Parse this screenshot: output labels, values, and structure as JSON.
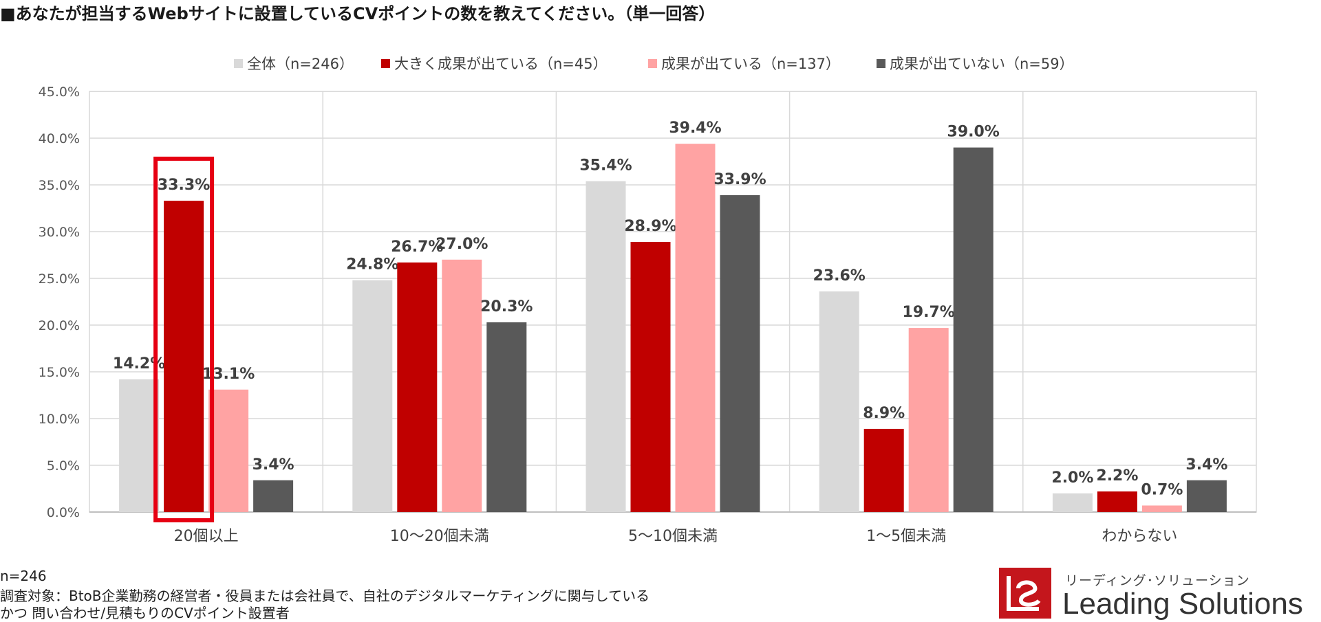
{
  "title": "■あなたが担当するWebサイトに設置しているCVポイントの数を教えてください。（単一回答）",
  "footnotes": {
    "n": "n=246",
    "line1": "調査対象：BtoB企業勤務の経営者・役員または会社員で、自社のデジタルマーケティングに関与している",
    "line2": "かつ 問い合わせ/見積もりのCVポイント設置者"
  },
  "logo": {
    "sub": "リーディング･ソリューション",
    "main": "Leading Solutions"
  },
  "chart_data": {
    "type": "bar",
    "categories": [
      "20個以上",
      "10～20個未満",
      "5～10個未満",
      "1～5個未満",
      "わからない"
    ],
    "series": [
      {
        "name": "全体（n=246）",
        "color": "#d9d9d9",
        "values": [
          14.2,
          24.8,
          35.4,
          23.6,
          2.0
        ],
        "labels": [
          "14.2%",
          "24.8%",
          "35.4%",
          "23.6%",
          "2.0%"
        ]
      },
      {
        "name": "大きく成果が出ている（n=45）",
        "color": "#c00000",
        "values": [
          33.3,
          26.7,
          28.9,
          8.9,
          2.2
        ],
        "labels": [
          "33.3%",
          "26.7%",
          "28.9%",
          "8.9%",
          "2.2%"
        ]
      },
      {
        "name": "成果が出ている（n=137）",
        "color": "#ffa3a3",
        "values": [
          13.1,
          27.0,
          39.4,
          19.7,
          0.7
        ],
        "labels": [
          "13.1%",
          "27.0%",
          "39.4%",
          "19.7%",
          "0.7%"
        ]
      },
      {
        "name": "成果が出ていない（n=59）",
        "color": "#595959",
        "values": [
          3.4,
          20.3,
          33.9,
          39.0,
          3.4
        ],
        "labels": [
          "3.4%",
          "20.3%",
          "33.9%",
          "39.0%",
          "3.4%"
        ]
      }
    ],
    "y_ticks": [
      "0.0%",
      "5.0%",
      "10.0%",
      "15.0%",
      "20.0%",
      "25.0%",
      "30.0%",
      "35.0%",
      "40.0%",
      "45.0%"
    ],
    "ylim": [
      0,
      45
    ],
    "grid": true,
    "legend_position": "top",
    "highlight": {
      "category": "20個以上",
      "series": "大きく成果が出ている（n=45）",
      "color": "#e60012"
    }
  }
}
